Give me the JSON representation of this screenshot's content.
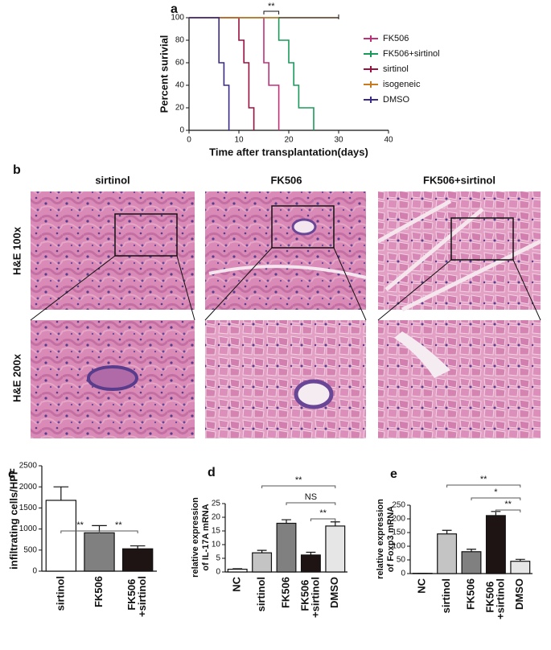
{
  "chart_data": [
    {
      "type": "line",
      "drawstyle": "steps-post",
      "panel": "a",
      "xlabel": "Time after transplantation(days)",
      "ylabel": "Percent surivial",
      "xlim": [
        0,
        40
      ],
      "xticks": [
        0,
        10,
        20,
        30,
        40
      ],
      "ylim": [
        0,
        100
      ],
      "yticks": [
        0,
        20,
        40,
        60,
        80,
        100
      ],
      "annotations": [
        "**"
      ],
      "series": [
        {
          "name": "FK506",
          "color": "#c0307a",
          "x": [
            0,
            15,
            16,
            18
          ],
          "values": [
            100,
            60,
            40,
            0
          ]
        },
        {
          "name": "FK506+sirtinol",
          "color": "#1a9a5a",
          "x": [
            0,
            18,
            20,
            21,
            22,
            25
          ],
          "values": [
            100,
            80,
            60,
            40,
            20,
            0
          ]
        },
        {
          "name": "sirtinol",
          "color": "#9a1040",
          "x": [
            0,
            10,
            11,
            12,
            13
          ],
          "values": [
            100,
            80,
            60,
            20,
            0
          ]
        },
        {
          "name": "isogeneic",
          "color": "#c87a20",
          "x": [
            0,
            30
          ],
          "values": [
            100,
            100
          ]
        },
        {
          "name": "DMSO",
          "color": "#3a2a8a",
          "x": [
            0,
            6,
            7,
            8
          ],
          "values": [
            100,
            60,
            40,
            0
          ]
        }
      ]
    },
    {
      "type": "bar",
      "panel": "c",
      "ylabel": [
        "infiltrating cells/HPF"
      ],
      "categories": [
        "sirtinol",
        "FK506",
        "FK506 +sirtinol"
      ],
      "values": [
        1680,
        910,
        530
      ],
      "errors": [
        320,
        170,
        70
      ],
      "colors": [
        "#ffffff",
        "#808080",
        "#1e1414"
      ],
      "ylim": [
        0,
        2500
      ],
      "yticks": [
        0,
        500,
        1000,
        1500,
        2000,
        2500
      ],
      "annotations": [
        "**",
        "**"
      ]
    },
    {
      "type": "bar",
      "panel": "d",
      "ylabel": [
        "relative expression",
        "of IL-17A mRNA"
      ],
      "categories": [
        "NC",
        "sirtinol",
        "FK506",
        "FK506 +sirtinol",
        "DMSO"
      ],
      "values": [
        1,
        7,
        17.8,
        6.2,
        16.8
      ],
      "errors": [
        0.2,
        0.9,
        1.3,
        1,
        1.5
      ],
      "colors": [
        "#ffffff",
        "#c4c4c4",
        "#808080",
        "#1e1414",
        "#e6e6e6"
      ],
      "ylim": [
        0,
        25
      ],
      "yticks": [
        0,
        5,
        10,
        15,
        20,
        25
      ],
      "annotations": [
        "**",
        "NS",
        "**"
      ]
    },
    {
      "type": "bar",
      "panel": "e",
      "ylabel": [
        "relative expression",
        "of Foxp3 mRNA"
      ],
      "categories": [
        "NC",
        "sirtinol",
        "FK506",
        "FK506 +sirtinol",
        "DMSO"
      ],
      "values": [
        1,
        145,
        80,
        212,
        45
      ],
      "errors": [
        0,
        13,
        9,
        15,
        7
      ],
      "colors": [
        "#ffffff",
        "#c4c4c4",
        "#808080",
        "#1e1414",
        "#e6e6e6"
      ],
      "ylim": [
        0,
        250
      ],
      "yticks": [
        0,
        50,
        100,
        150,
        200,
        250
      ],
      "annotations": [
        "**",
        "*",
        "**"
      ]
    }
  ],
  "panel_b": {
    "label": "b",
    "columns": [
      "sirtinol",
      "FK506",
      "FK506+sirtinol"
    ],
    "rows": [
      "H&E 100x",
      "H&E 200x"
    ]
  }
}
